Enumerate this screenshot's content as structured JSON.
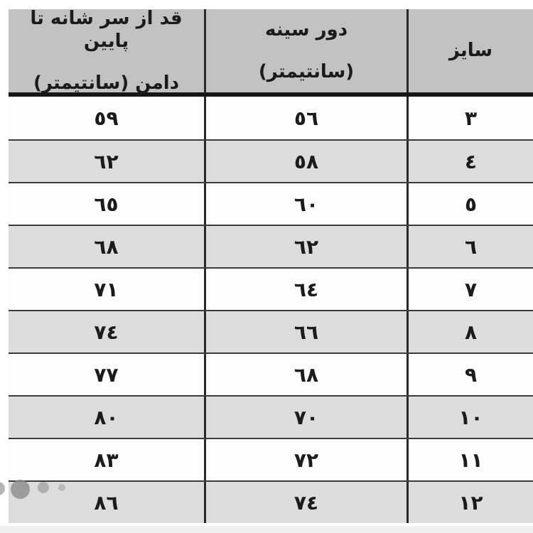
{
  "table": {
    "direction": "rtl",
    "header": {
      "size_label": "سایز",
      "chest_label_line1": "دور سینه",
      "chest_label_line2": "(سانتیمتر)",
      "length_label_line1": "قد از سر شانه تا پایین",
      "length_label_line2": "دامن (سانتیمتر)"
    },
    "rows": [
      {
        "size": "٣",
        "chest": "٥٦",
        "length": "٥٩"
      },
      {
        "size": "٤",
        "chest": "٥٨",
        "length": "٦٢"
      },
      {
        "size": "٥",
        "chest": "٦٠",
        "length": "٦٥"
      },
      {
        "size": "٦",
        "chest": "٦٢",
        "length": "٦٨"
      },
      {
        "size": "٧",
        "chest": "٦٤",
        "length": "٧١"
      },
      {
        "size": "٨",
        "chest": "٦٦",
        "length": "٧٤"
      },
      {
        "size": "٩",
        "chest": "٦٨",
        "length": "٧٧"
      },
      {
        "size": "١٠",
        "chest": "٧٠",
        "length": "٨٠"
      },
      {
        "size": "١١",
        "chest": "٧٢",
        "length": "٨٣"
      },
      {
        "size": "١٢",
        "chest": "٧٤",
        "length": "٨٦"
      }
    ],
    "colors": {
      "header_bg": "#c2c2c2",
      "stripe_row_bg": "#dcdcdc",
      "plain_row_bg": "#fdfdfd",
      "grid_line": "#3a3a3a",
      "heavy_line": "#161616",
      "vertical_line": "#2a2a2a",
      "text": "#1b1b1b",
      "bottom_strip": "#f1efef"
    }
  }
}
